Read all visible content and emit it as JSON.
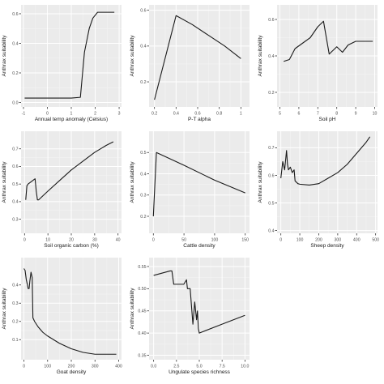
{
  "chart_data": [
    {
      "type": "line",
      "xlabel": "Annual temp anomaly (Celsius)",
      "ylabel": "Anthrax suitability",
      "xlim": [
        -1.1,
        3.1
      ],
      "ylim": [
        -0.03,
        0.66
      ],
      "xticks": [
        -1,
        0,
        1,
        2,
        3
      ],
      "yticks": [
        0.0,
        0.2,
        0.4,
        0.6
      ],
      "ytick_labels": [
        "0.0",
        "0.2",
        "0.4",
        "0.6"
      ],
      "grid": true,
      "series": [
        {
          "x": [
            -0.95,
            0.0,
            1.0,
            1.38,
            1.55,
            1.75,
            1.9,
            2.1,
            2.8
          ],
          "y": [
            0.03,
            0.03,
            0.03,
            0.035,
            0.34,
            0.5,
            0.57,
            0.61,
            0.61
          ]
        }
      ]
    },
    {
      "type": "line",
      "xlabel": "P-T alpha",
      "ylabel": "Anthrax suitability",
      "xlim": [
        0.15,
        1.08
      ],
      "ylim": [
        0.06,
        0.63
      ],
      "xticks": [
        0.2,
        0.4,
        0.6,
        0.8,
        1.0
      ],
      "yticks": [
        0.2,
        0.4,
        0.6
      ],
      "ytick_labels": [
        "0.2",
        "0.4",
        "0.6"
      ],
      "grid": true,
      "series": [
        {
          "x": [
            0.2,
            0.4,
            0.55,
            0.7,
            0.85,
            1.0
          ],
          "y": [
            0.1,
            0.57,
            0.52,
            0.46,
            0.4,
            0.33
          ]
        }
      ]
    },
    {
      "type": "line",
      "xlabel": "Soil pH",
      "ylabel": "Anthrax suitability",
      "xlim": [
        4.85,
        10.15
      ],
      "ylim": [
        0.12,
        0.68
      ],
      "xticks": [
        5,
        6,
        7,
        8,
        9,
        10
      ],
      "yticks": [
        0.2,
        0.4,
        0.6
      ],
      "ytick_labels": [
        "0.2",
        "0.4",
        "0.6"
      ],
      "grid": true,
      "series": [
        {
          "x": [
            5.2,
            5.5,
            5.8,
            6.2,
            6.6,
            7.0,
            7.3,
            7.6,
            8.0,
            8.3,
            8.6,
            9.0,
            9.5,
            9.9
          ],
          "y": [
            0.37,
            0.38,
            0.44,
            0.47,
            0.5,
            0.56,
            0.59,
            0.41,
            0.45,
            0.42,
            0.46,
            0.48,
            0.48,
            0.48
          ]
        }
      ]
    },
    {
      "type": "line",
      "xlabel": "Soil organic carbon (%)",
      "ylabel": "Anthrax suitability",
      "xlim": [
        -1.5,
        41.5
      ],
      "ylim": [
        0.22,
        0.8
      ],
      "xticks": [
        0,
        10,
        20,
        30,
        40
      ],
      "yticks": [
        0.3,
        0.4,
        0.5,
        0.6,
        0.7
      ],
      "ytick_labels": [
        "0.3",
        "0.4",
        "0.5",
        "0.6",
        "0.7"
      ],
      "grid": true,
      "series": [
        {
          "x": [
            0.5,
            1.0,
            1.5,
            4.5,
            5.0,
            5.5,
            6.0,
            10,
            15,
            20,
            25,
            30,
            35,
            38
          ],
          "y": [
            0.41,
            0.49,
            0.5,
            0.53,
            0.46,
            0.41,
            0.41,
            0.46,
            0.52,
            0.58,
            0.63,
            0.68,
            0.72,
            0.74
          ]
        }
      ]
    },
    {
      "type": "line",
      "xlabel": "Cattle density",
      "ylabel": "Anthrax suitability",
      "xlim": [
        -7,
        157
      ],
      "ylim": [
        0.12,
        0.6
      ],
      "xticks": [
        0,
        50,
        100,
        150
      ],
      "yticks": [
        0.2,
        0.3,
        0.4,
        0.5
      ],
      "ytick_labels": [
        "0.2",
        "0.3",
        "0.4",
        "0.5"
      ],
      "grid": true,
      "series": [
        {
          "x": [
            0,
            5,
            20,
            50,
            100,
            150
          ],
          "y": [
            0.2,
            0.5,
            0.48,
            0.44,
            0.37,
            0.31
          ]
        }
      ]
    },
    {
      "type": "line",
      "xlabel": "Sheep density",
      "ylabel": "Anthrax suitability",
      "xlim": [
        -20,
        510
      ],
      "ylim": [
        0.39,
        0.76
      ],
      "xticks": [
        0,
        100,
        200,
        300,
        400,
        500
      ],
      "yticks": [
        0.4,
        0.5,
        0.6,
        0.7
      ],
      "ytick_labels": [
        "0.4",
        "0.5",
        "0.6",
        "0.7"
      ],
      "grid": true,
      "series": [
        {
          "x": [
            0,
            10,
            20,
            30,
            35,
            40,
            50,
            60,
            70,
            75,
            90,
            100,
            150,
            200,
            250,
            300,
            350,
            400,
            450,
            470
          ],
          "y": [
            0.59,
            0.65,
            0.62,
            0.69,
            0.64,
            0.62,
            0.63,
            0.61,
            0.62,
            0.58,
            0.57,
            0.568,
            0.565,
            0.57,
            0.59,
            0.61,
            0.64,
            0.68,
            0.72,
            0.74
          ]
        }
      ]
    },
    {
      "type": "line",
      "xlabel": "Goat density",
      "ylabel": "Anthrax suitability",
      "xlim": [
        -12,
        412
      ],
      "ylim": [
        -0.01,
        0.55
      ],
      "xticks": [
        0,
        100,
        200,
        300,
        400
      ],
      "yticks": [
        0.1,
        0.2,
        0.3,
        0.4
      ],
      "ytick_labels": [
        "0.1",
        "0.2",
        "0.3",
        "0.4"
      ],
      "grid": true,
      "series": [
        {
          "x": [
            0,
            5,
            10,
            15,
            18,
            22,
            25,
            30,
            35,
            38,
            45,
            60,
            80,
            100,
            150,
            200,
            250,
            300,
            350,
            390
          ],
          "y": [
            0.49,
            0.48,
            0.43,
            0.4,
            0.38,
            0.38,
            0.42,
            0.47,
            0.44,
            0.22,
            0.2,
            0.17,
            0.14,
            0.12,
            0.08,
            0.05,
            0.03,
            0.02,
            0.02,
            0.02
          ]
        }
      ]
    },
    {
      "type": "line",
      "xlabel": "Ungulate species richness",
      "ylabel": "Anthrax suitability",
      "xlim": [
        -0.5,
        10.5
      ],
      "ylim": [
        0.34,
        0.57
      ],
      "xticks": [
        0.0,
        2.5,
        5.0,
        7.5,
        10.0
      ],
      "xtick_labels": [
        "0.0",
        "2.5",
        "5.0",
        "7.5",
        "10.0"
      ],
      "yticks": [
        0.35,
        0.4,
        0.45,
        0.5,
        0.55
      ],
      "ytick_labels": [
        "0.35",
        "0.40",
        "0.45",
        "0.50",
        "0.55"
      ],
      "grid": true,
      "series": [
        {
          "x": [
            0,
            1.8,
            2.0,
            2.2,
            3.3,
            3.6,
            3.7,
            4.0,
            4.3,
            4.5,
            4.6,
            4.7,
            4.8,
            4.9,
            5.0,
            7.5,
            10.0
          ],
          "y": [
            0.53,
            0.54,
            0.54,
            0.51,
            0.51,
            0.52,
            0.5,
            0.5,
            0.42,
            0.47,
            0.45,
            0.43,
            0.45,
            0.41,
            0.4,
            0.42,
            0.44
          ]
        }
      ]
    }
  ]
}
